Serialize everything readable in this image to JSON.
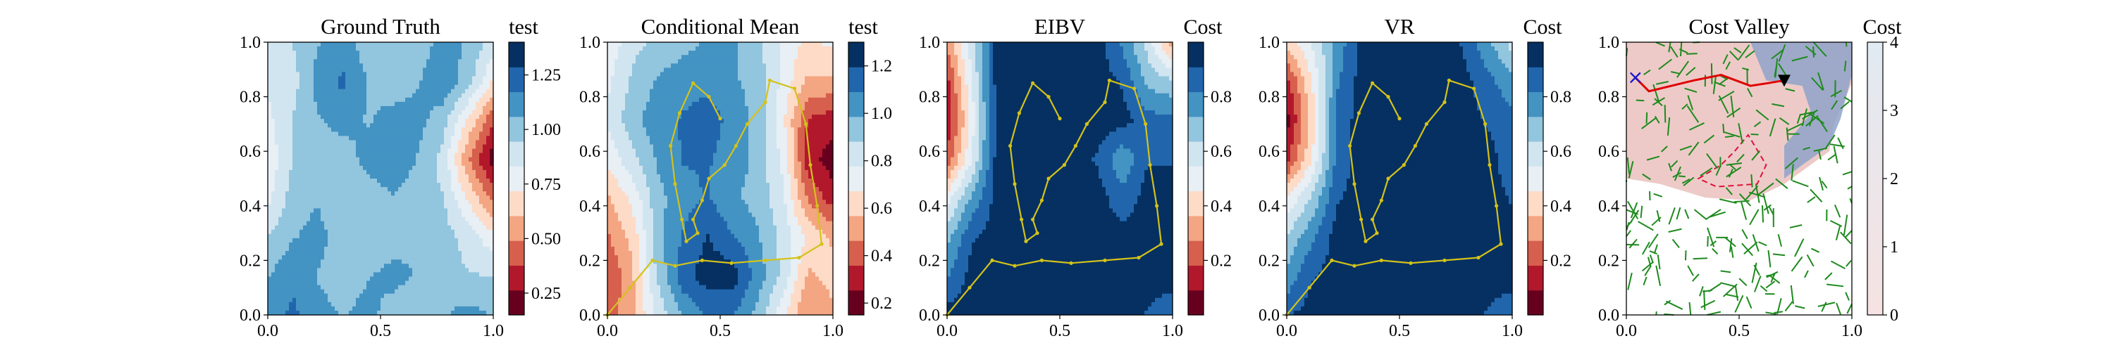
{
  "chart_data": [
    {
      "type": "heatmap",
      "title": "Ground Truth",
      "colorbar_label": "test",
      "xlim": [
        0,
        1
      ],
      "ylim": [
        0,
        1
      ],
      "xticks": [
        "0.0",
        "0.5",
        "1.0"
      ],
      "yticks": [
        "0.0",
        "0.2",
        "0.4",
        "0.6",
        "0.8",
        "1.0"
      ],
      "colorbar_range": [
        0.15,
        1.4
      ],
      "colorbar_ticks": [
        "0.25",
        "0.50",
        "0.75",
        "1.00",
        "1.25"
      ],
      "colorbar_tick_values": [
        0.25,
        0.5,
        0.75,
        1.0,
        1.25
      ],
      "colormap": "RdBu",
      "field": [
        [
          0.9,
          0.95,
          1.05,
          1.1,
          1.0,
          0.95,
          1.0,
          1.1,
          1.05,
          0.9
        ],
        [
          0.85,
          0.9,
          1.1,
          1.2,
          1.05,
          1.0,
          1.05,
          1.15,
          1.0,
          0.7
        ],
        [
          0.8,
          0.95,
          1.05,
          1.1,
          1.05,
          1.1,
          1.1,
          1.0,
          0.7,
          0.4
        ],
        [
          0.75,
          0.95,
          1.0,
          1.0,
          1.1,
          1.15,
          1.05,
          0.9,
          0.5,
          0.2
        ],
        [
          0.8,
          1.0,
          1.05,
          0.95,
          1.0,
          1.05,
          1.0,
          0.95,
          0.7,
          0.45
        ],
        [
          0.95,
          1.05,
          1.1,
          1.0,
          0.95,
          1.0,
          1.05,
          1.0,
          0.9,
          0.75
        ],
        [
          1.05,
          1.15,
          1.05,
          1.0,
          1.05,
          1.1,
          1.05,
          1.0,
          0.95,
          0.95
        ],
        [
          1.1,
          1.2,
          1.1,
          1.05,
          1.1,
          1.0,
          0.95,
          1.05,
          1.1,
          1.05
        ]
      ],
      "overlay": "none"
    },
    {
      "type": "heatmap",
      "title": "Conditional Mean",
      "colorbar_label": "test",
      "xlim": [
        0,
        1
      ],
      "ylim": [
        0,
        1
      ],
      "xticks": [
        "0.0",
        "0.5",
        "1.0"
      ],
      "yticks": [
        "0.0",
        "0.2",
        "0.4",
        "0.6",
        "0.8",
        "1.0"
      ],
      "colorbar_range": [
        0.15,
        1.3
      ],
      "colorbar_ticks": [
        "0.2",
        "0.4",
        "0.6",
        "0.8",
        "1.0",
        "1.2"
      ],
      "colorbar_tick_values": [
        0.2,
        0.4,
        0.6,
        0.8,
        1.0,
        1.2
      ],
      "colormap": "RdBu",
      "field": [
        [
          0.7,
          0.85,
          0.9,
          0.95,
          1.0,
          1.0,
          0.9,
          0.75,
          0.65,
          0.7
        ],
        [
          0.75,
          0.9,
          1.0,
          1.05,
          1.05,
          1.0,
          0.95,
          0.75,
          0.55,
          0.55
        ],
        [
          0.8,
          0.95,
          1.05,
          1.1,
          1.15,
          1.05,
          0.95,
          0.7,
          0.35,
          0.3
        ],
        [
          0.7,
          0.85,
          1.0,
          1.1,
          1.1,
          1.05,
          0.95,
          0.75,
          0.3,
          0.2
        ],
        [
          0.55,
          0.7,
          0.95,
          1.05,
          1.1,
          1.0,
          0.95,
          0.8,
          0.45,
          0.3
        ],
        [
          0.45,
          0.6,
          0.95,
          1.1,
          1.2,
          1.1,
          1.0,
          0.85,
          0.65,
          0.55
        ],
        [
          0.35,
          0.55,
          0.9,
          1.15,
          1.25,
          1.25,
          1.05,
          0.85,
          0.55,
          0.6
        ],
        [
          0.4,
          0.55,
          0.8,
          1.0,
          1.1,
          1.1,
          0.95,
          0.7,
          0.45,
          0.55
        ]
      ],
      "overlay": "path"
    },
    {
      "type": "heatmap",
      "title": "EIBV",
      "colorbar_label": "Cost",
      "xlim": [
        0,
        1
      ],
      "ylim": [
        0,
        1
      ],
      "xticks": [
        "0.0",
        "0.5",
        "1.0"
      ],
      "yticks": [
        "0.0",
        "0.2",
        "0.4",
        "0.6",
        "0.8",
        "1.0"
      ],
      "colorbar_range": [
        0.0,
        1.0
      ],
      "colorbar_ticks": [
        "0.2",
        "0.4",
        "0.6",
        "0.8"
      ],
      "colorbar_tick_values": [
        0.2,
        0.4,
        0.6,
        0.8
      ],
      "colormap": "RdBu",
      "field": [
        [
          0.3,
          0.6,
          0.95,
          0.95,
          0.95,
          0.95,
          0.95,
          0.8,
          0.6,
          0.3
        ],
        [
          0.15,
          0.55,
          0.95,
          0.95,
          0.95,
          0.95,
          0.95,
          0.9,
          0.7,
          0.65
        ],
        [
          0.1,
          0.5,
          0.95,
          0.95,
          0.95,
          0.95,
          0.95,
          0.95,
          0.85,
          0.85
        ],
        [
          0.2,
          0.55,
          0.95,
          0.95,
          0.95,
          0.95,
          0.9,
          0.75,
          0.9,
          0.9
        ],
        [
          0.5,
          0.75,
          0.95,
          0.95,
          0.95,
          0.95,
          0.95,
          0.85,
          0.95,
          0.95
        ],
        [
          0.7,
          0.9,
          0.95,
          0.95,
          0.95,
          0.95,
          0.95,
          0.95,
          0.95,
          0.95
        ],
        [
          0.8,
          0.95,
          0.95,
          0.95,
          0.95,
          0.95,
          0.95,
          0.95,
          0.95,
          0.95
        ],
        [
          0.95,
          0.95,
          0.95,
          0.95,
          0.95,
          0.95,
          0.95,
          0.95,
          0.9,
          0.85
        ]
      ],
      "overlay": "path"
    },
    {
      "type": "heatmap",
      "title": "VR",
      "colorbar_label": "Cost",
      "xlim": [
        0,
        1
      ],
      "ylim": [
        0,
        1
      ],
      "xticks": [
        "0.0",
        "0.5",
        "1.0"
      ],
      "yticks": [
        "0.0",
        "0.2",
        "0.4",
        "0.6",
        "0.8",
        "1.0"
      ],
      "colorbar_range": [
        0.0,
        1.0
      ],
      "colorbar_ticks": [
        "0.2",
        "0.4",
        "0.6",
        "0.8"
      ],
      "colorbar_tick_values": [
        0.2,
        0.4,
        0.6,
        0.8
      ],
      "colormap": "RdBu",
      "field": [
        [
          0.4,
          0.55,
          0.75,
          0.95,
          0.95,
          0.95,
          0.95,
          0.9,
          0.75,
          0.6
        ],
        [
          0.15,
          0.45,
          0.8,
          0.95,
          0.95,
          0.95,
          0.95,
          0.95,
          0.85,
          0.75
        ],
        [
          0.05,
          0.4,
          0.85,
          0.95,
          0.95,
          0.95,
          0.95,
          0.95,
          0.9,
          0.85
        ],
        [
          0.15,
          0.45,
          0.85,
          0.95,
          0.95,
          0.95,
          0.95,
          0.95,
          0.95,
          0.85
        ],
        [
          0.45,
          0.65,
          0.9,
          0.95,
          0.95,
          0.95,
          0.95,
          0.95,
          0.95,
          0.9
        ],
        [
          0.65,
          0.8,
          0.95,
          0.95,
          0.95,
          0.95,
          0.95,
          0.95,
          0.95,
          0.95
        ],
        [
          0.75,
          0.9,
          0.95,
          0.95,
          0.95,
          0.95,
          0.95,
          0.95,
          0.95,
          0.95
        ],
        [
          0.9,
          0.95,
          0.95,
          0.95,
          0.95,
          0.95,
          0.95,
          0.95,
          0.9,
          0.85
        ]
      ],
      "overlay": "path"
    },
    {
      "type": "heatmap",
      "title": "Cost Valley",
      "colorbar_label": "Cost",
      "xlim": [
        0,
        1
      ],
      "ylim": [
        0,
        1
      ],
      "xticks": [
        "0.0",
        "0.5",
        "1.0"
      ],
      "yticks": [
        "0.0",
        "0.2",
        "0.4",
        "0.6",
        "0.8",
        "1.0"
      ],
      "colorbar_range": [
        0,
        4
      ],
      "colorbar_ticks": [
        "0",
        "1",
        "2",
        "3",
        "4"
      ],
      "colorbar_tick_values": [
        0,
        1,
        2,
        3,
        4
      ],
      "colormap": "Reds-Blues-light",
      "overlay": "tree",
      "valley_polygon": [
        [
          0,
          1
        ],
        [
          1,
          1
        ],
        [
          1,
          0.85
        ],
        [
          0.92,
          0.7
        ],
        [
          0.9,
          0.6
        ],
        [
          0.7,
          0.48
        ],
        [
          0.55,
          0.42
        ],
        [
          0.35,
          0.43
        ],
        [
          0.15,
          0.48
        ],
        [
          0,
          0.5
        ]
      ],
      "blue_region": [
        [
          0.55,
          1
        ],
        [
          1,
          1
        ],
        [
          1,
          0.88
        ],
        [
          0.95,
          0.72
        ],
        [
          0.9,
          0.62
        ],
        [
          0.78,
          0.55
        ],
        [
          0.7,
          0.5
        ],
        [
          0.7,
          0.62
        ],
        [
          0.82,
          0.74
        ],
        [
          0.78,
          0.84
        ],
        [
          0.62,
          0.86
        ]
      ],
      "dashed_polygon": [
        [
          0.32,
          0.5
        ],
        [
          0.42,
          0.55
        ],
        [
          0.48,
          0.6
        ],
        [
          0.54,
          0.66
        ],
        [
          0.62,
          0.55
        ],
        [
          0.58,
          0.48
        ],
        [
          0.4,
          0.47
        ]
      ],
      "start_marker": [
        0.04,
        0.87
      ],
      "end_marker": [
        0.7,
        0.86
      ],
      "red_path": [
        [
          0.04,
          0.87
        ],
        [
          0.1,
          0.82
        ],
        [
          0.2,
          0.84
        ],
        [
          0.3,
          0.86
        ],
        [
          0.42,
          0.88
        ],
        [
          0.55,
          0.84
        ],
        [
          0.63,
          0.85
        ],
        [
          0.7,
          0.86
        ]
      ]
    }
  ]
}
